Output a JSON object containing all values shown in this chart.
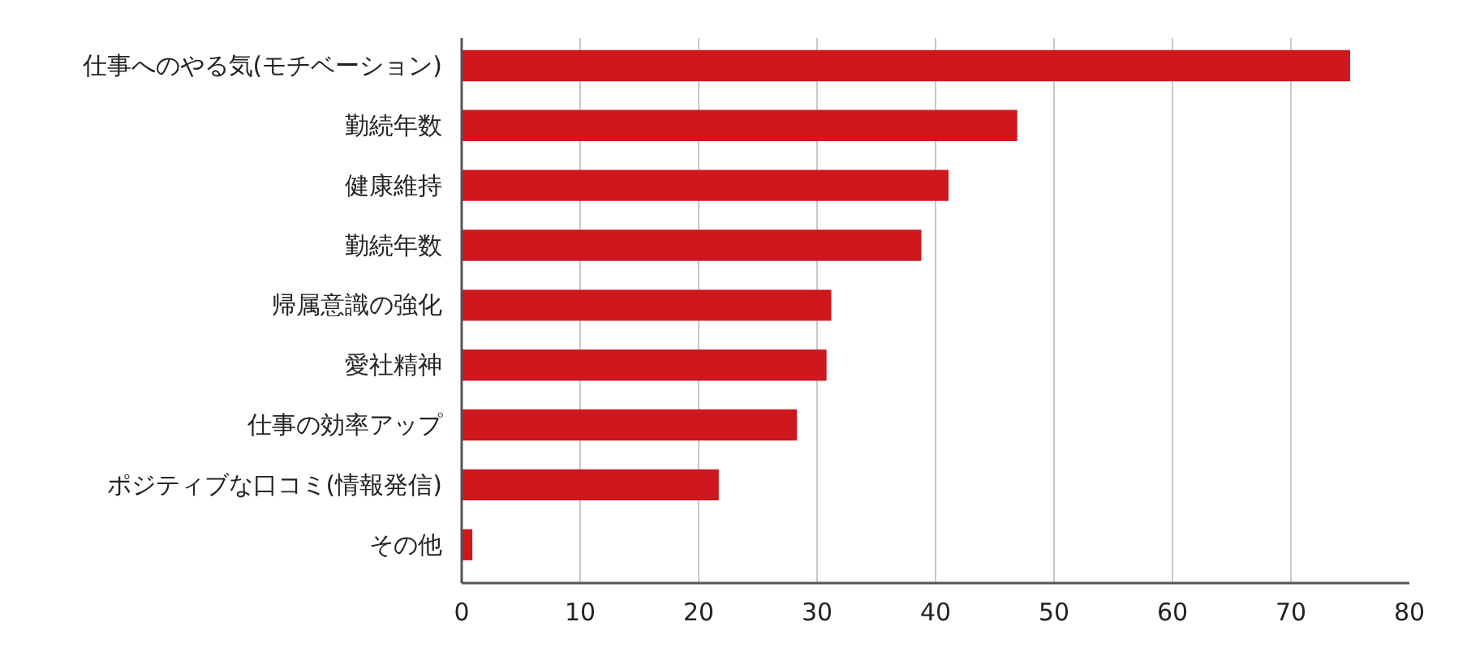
{
  "chart_data": {
    "type": "bar",
    "orientation": "horizontal",
    "categories": [
      "仕事へのやる気(モチベーション)",
      "勤続年数",
      "健康維持",
      "勤続年数",
      "帰属意識の強化",
      "愛社精神",
      "仕事の効率アップ",
      "ポジティブな口コミ(情報発信)",
      "その他"
    ],
    "values": [
      75,
      46.9,
      41.1,
      38.8,
      31.2,
      30.8,
      28.3,
      21.7,
      0.9
    ],
    "color": "#cf171e",
    "xlim": [
      0,
      80
    ],
    "xticks": [
      0,
      10,
      20,
      30,
      40,
      50,
      60,
      70,
      80
    ],
    "grid": "x"
  }
}
